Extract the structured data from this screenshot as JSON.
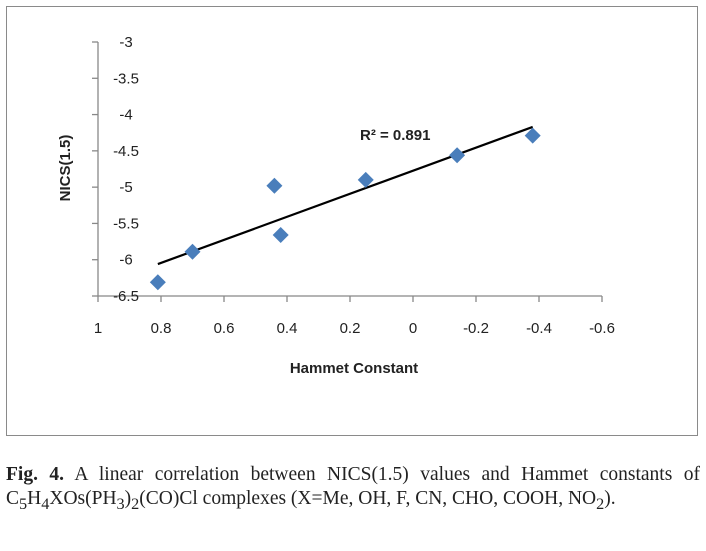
{
  "chart_data": {
    "type": "scatter",
    "title": "",
    "xlabel": "Hammet Constant",
    "ylabel": "NICS(1.5)",
    "xlim": [
      1,
      -0.6
    ],
    "x_reversed": true,
    "ylim": [
      -6.5,
      -3
    ],
    "xticks": [
      "1",
      "0.8",
      "0.6",
      "0.4",
      "0.2",
      "0",
      "-0.2",
      "-0.4",
      "-0.6"
    ],
    "yticks": [
      "-3",
      "-3.5",
      "-4",
      "-4.5",
      "-5",
      "-5.5",
      "-6",
      "-6.5"
    ],
    "grid": false,
    "marker": "diamond",
    "marker_color": "#4a7ebb",
    "points": [
      {
        "x": 0.81,
        "y": -6.31
      },
      {
        "x": 0.7,
        "y": -5.89
      },
      {
        "x": 0.44,
        "y": -4.98
      },
      {
        "x": 0.42,
        "y": -5.66
      },
      {
        "x": 0.15,
        "y": -4.9
      },
      {
        "x": -0.14,
        "y": -4.56
      },
      {
        "x": -0.38,
        "y": -4.29
      }
    ],
    "trendline": {
      "x": [
        0.81,
        -0.38
      ],
      "y": [
        -6.06,
        -4.17
      ],
      "color": "#000000"
    },
    "annotation": "R² = 0.891"
  },
  "caption": {
    "label": "Fig. 4.",
    "text": "A linear correlation between NICS(1.5) values and Hammet constants of C5H4XOs(PH3)2(CO)Cl complexes (X=Me, OH, F, CN, CHO, COOH, NO2).",
    "p1": " A linear correlation between NICS(1.5) values and Hammet constants of C",
    "s1": "5",
    "p2": "H",
    "s2": "4",
    "p3": "XOs(PH",
    "s3": "3",
    "p4": ")",
    "s4": "2",
    "p5": "(CO)Cl complexes (X=Me, OH, F, CN, CHO, COOH, NO",
    "s5": "2",
    "p6": ")."
  }
}
